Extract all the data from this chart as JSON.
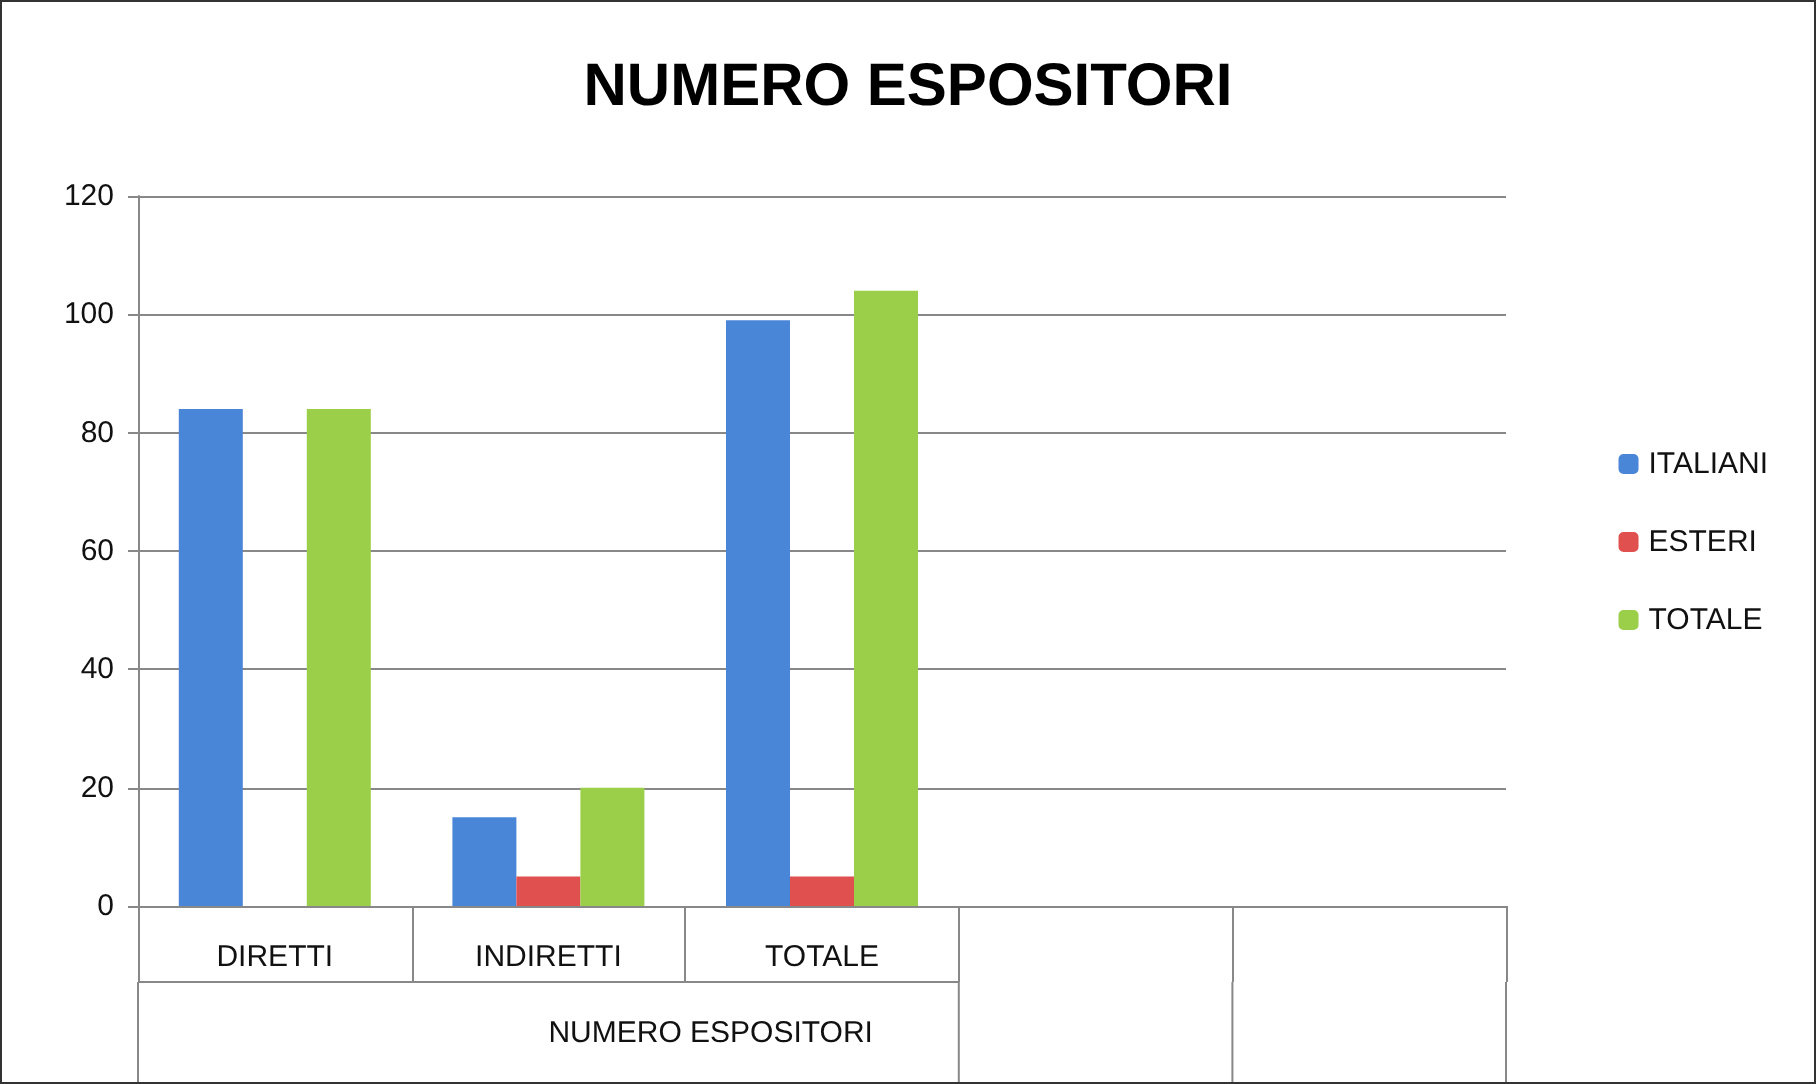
{
  "chart_data": {
    "type": "bar",
    "title": "NUMERO ESPOSITORI",
    "xlabel": "NUMERO ESPOSITORI",
    "categories": [
      "DIRETTI",
      "INDIRETTI",
      "TOTALE",
      null,
      null
    ],
    "series": [
      {
        "name": "ITALIANI",
        "color": "#4a86d8",
        "values": [
          84,
          15,
          99,
          null,
          null
        ]
      },
      {
        "name": "ESTERI",
        "color": "#e0504f",
        "values": [
          null,
          5,
          5,
          null,
          null
        ]
      },
      {
        "name": "TOTALE",
        "color": "#9bcf4a",
        "values": [
          84,
          20,
          104,
          null,
          null
        ]
      }
    ],
    "ylim": [
      0,
      120
    ],
    "yticks": [
      0,
      20,
      40,
      60,
      80,
      100,
      120
    ],
    "grid": "y",
    "legend": "right"
  }
}
